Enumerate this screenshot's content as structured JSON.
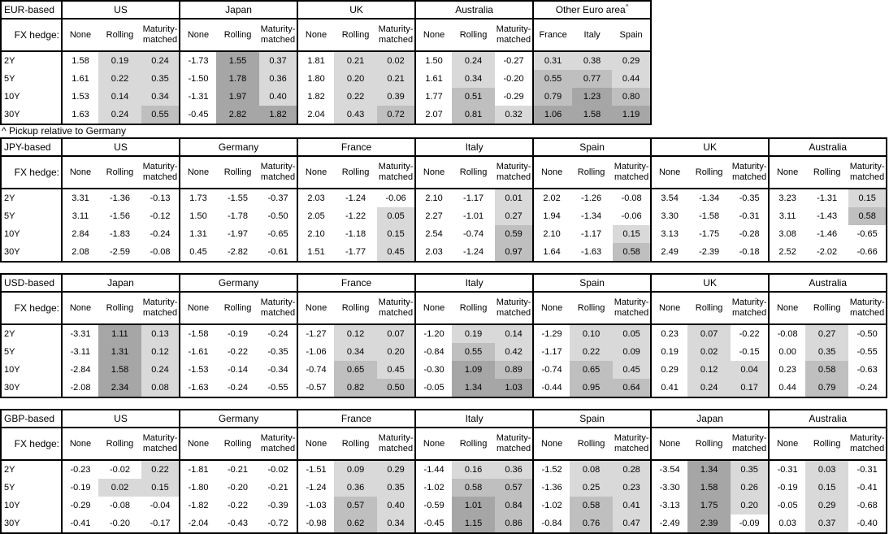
{
  "page": {
    "background": "#ffffff"
  },
  "fx_hedge_label": "FX hedge:",
  "row_labels": [
    "2Y",
    "5Y",
    "10Y",
    "30Y"
  ],
  "standard_cols": [
    "None",
    "Rolling",
    "Maturity-matched"
  ],
  "footnote": "^ Pickup relative to Germany",
  "shading": {
    "rule": "value cells (Rolling, Maturity-matched, and all Other-Euro-area columns) shaded by value: >0 light, >=0.5 medium, >=1.0 dark; None columns and non-positive values unshaded",
    "colors": {
      "light": "#d9d9d9",
      "medium": "#bfbfbf",
      "dark": "#a6a6a6",
      "none": "#ffffff"
    }
  },
  "tables": [
    {
      "base": "EUR-based",
      "groups": [
        {
          "name": "US",
          "values": [
            [
              1.58,
              0.19,
              0.24
            ],
            [
              1.61,
              0.22,
              0.35
            ],
            [
              1.53,
              0.14,
              0.34
            ],
            [
              1.63,
              0.24,
              0.55
            ]
          ]
        },
        {
          "name": "Japan",
          "values": [
            [
              -1.73,
              1.55,
              0.37
            ],
            [
              -1.5,
              1.78,
              0.36
            ],
            [
              -1.31,
              1.97,
              0.4
            ],
            [
              -0.45,
              2.82,
              1.82
            ]
          ]
        },
        {
          "name": "UK",
          "values": [
            [
              1.81,
              0.21,
              0.02
            ],
            [
              1.8,
              0.2,
              0.21
            ],
            [
              1.82,
              0.22,
              0.39
            ],
            [
              2.04,
              0.43,
              0.72
            ]
          ]
        },
        {
          "name": "Australia",
          "values": [
            [
              1.5,
              0.24,
              -0.27
            ],
            [
              1.61,
              0.34,
              -0.2
            ],
            [
              1.77,
              0.51,
              -0.29
            ],
            [
              2.07,
              0.81,
              0.32
            ]
          ]
        },
        {
          "name": "Other Euro area",
          "sup": "^",
          "shade_all": true,
          "cols": [
            "France",
            "Italy",
            "Spain"
          ],
          "values": [
            [
              0.31,
              0.38,
              0.29
            ],
            [
              0.55,
              0.77,
              0.44
            ],
            [
              0.79,
              1.23,
              0.8
            ],
            [
              1.06,
              1.58,
              1.19
            ]
          ]
        }
      ]
    },
    {
      "base": "JPY-based",
      "groups": [
        {
          "name": "US",
          "values": [
            [
              3.31,
              -1.36,
              -0.13
            ],
            [
              3.11,
              -1.56,
              -0.12
            ],
            [
              2.84,
              -1.83,
              -0.24
            ],
            [
              2.08,
              -2.59,
              -0.08
            ]
          ]
        },
        {
          "name": "Germany",
          "values": [
            [
              1.73,
              -1.55,
              -0.37
            ],
            [
              1.5,
              -1.78,
              -0.5
            ],
            [
              1.31,
              -1.97,
              -0.65
            ],
            [
              0.45,
              -2.82,
              -0.61
            ]
          ]
        },
        {
          "name": "France",
          "values": [
            [
              2.03,
              -1.24,
              -0.06
            ],
            [
              2.05,
              -1.22,
              0.05
            ],
            [
              2.1,
              -1.18,
              0.15
            ],
            [
              1.51,
              -1.77,
              0.45
            ]
          ]
        },
        {
          "name": "Italy",
          "values": [
            [
              2.1,
              -1.17,
              0.01
            ],
            [
              2.27,
              -1.01,
              0.27
            ],
            [
              2.54,
              -0.74,
              0.59
            ],
            [
              2.03,
              -1.24,
              0.97
            ]
          ]
        },
        {
          "name": "Spain",
          "values": [
            [
              2.02,
              -1.26,
              -0.08
            ],
            [
              1.94,
              -1.34,
              -0.06
            ],
            [
              2.1,
              -1.17,
              0.15
            ],
            [
              1.64,
              -1.63,
              0.58
            ]
          ]
        },
        {
          "name": "UK",
          "values": [
            [
              3.54,
              -1.34,
              -0.35
            ],
            [
              3.3,
              -1.58,
              -0.31
            ],
            [
              3.13,
              -1.75,
              -0.28
            ],
            [
              2.49,
              -2.39,
              -0.18
            ]
          ]
        },
        {
          "name": "Australia",
          "values": [
            [
              3.23,
              -1.31,
              0.15
            ],
            [
              3.11,
              -1.43,
              0.58
            ],
            [
              3.08,
              -1.46,
              -0.65
            ],
            [
              2.52,
              -2.02,
              -0.66
            ]
          ]
        }
      ]
    },
    {
      "base": "USD-based",
      "groups": [
        {
          "name": "Japan",
          "values": [
            [
              -3.31,
              1.11,
              0.13
            ],
            [
              -3.11,
              1.31,
              0.12
            ],
            [
              -2.84,
              1.58,
              0.24
            ],
            [
              -2.08,
              2.34,
              0.08
            ]
          ]
        },
        {
          "name": "Germany",
          "values": [
            [
              -1.58,
              -0.19,
              -0.24
            ],
            [
              -1.61,
              -0.22,
              -0.35
            ],
            [
              -1.53,
              -0.14,
              -0.34
            ],
            [
              -1.63,
              -0.24,
              -0.55
            ]
          ]
        },
        {
          "name": "France",
          "values": [
            [
              -1.27,
              0.12,
              0.07
            ],
            [
              -1.06,
              0.34,
              0.2
            ],
            [
              -0.74,
              0.65,
              0.45
            ],
            [
              -0.57,
              0.82,
              0.5
            ]
          ]
        },
        {
          "name": "Italy",
          "values": [
            [
              -1.2,
              0.19,
              0.14
            ],
            [
              -0.84,
              0.55,
              0.42
            ],
            [
              -0.3,
              1.09,
              0.89
            ],
            [
              -0.05,
              1.34,
              1.03
            ]
          ]
        },
        {
          "name": "Spain",
          "values": [
            [
              -1.29,
              0.1,
              0.05
            ],
            [
              -1.17,
              0.22,
              0.09
            ],
            [
              -0.74,
              0.65,
              0.45
            ],
            [
              -0.44,
              0.95,
              0.64
            ]
          ]
        },
        {
          "name": "UK",
          "values": [
            [
              0.23,
              0.07,
              -0.22
            ],
            [
              0.19,
              0.02,
              -0.15
            ],
            [
              0.29,
              0.12,
              0.04
            ],
            [
              0.41,
              0.24,
              0.17
            ]
          ]
        },
        {
          "name": "Australia",
          "values": [
            [
              -0.08,
              0.27,
              -0.5
            ],
            [
              0.0,
              0.35,
              -0.55
            ],
            [
              0.23,
              0.58,
              -0.63
            ],
            [
              0.44,
              0.79,
              -0.24
            ]
          ]
        }
      ]
    },
    {
      "base": "GBP-based",
      "groups": [
        {
          "name": "US",
          "values": [
            [
              -0.23,
              -0.02,
              0.22
            ],
            [
              -0.19,
              0.02,
              0.15
            ],
            [
              -0.29,
              -0.08,
              -0.04
            ],
            [
              -0.41,
              -0.2,
              -0.17
            ]
          ]
        },
        {
          "name": "Germany",
          "values": [
            [
              -1.81,
              -0.21,
              -0.02
            ],
            [
              -1.8,
              -0.2,
              -0.21
            ],
            [
              -1.82,
              -0.22,
              -0.39
            ],
            [
              -2.04,
              -0.43,
              -0.72
            ]
          ]
        },
        {
          "name": "France",
          "values": [
            [
              -1.51,
              0.09,
              0.29
            ],
            [
              -1.24,
              0.36,
              0.35
            ],
            [
              -1.03,
              0.57,
              0.4
            ],
            [
              -0.98,
              0.62,
              0.34
            ]
          ]
        },
        {
          "name": "Italy",
          "values": [
            [
              -1.44,
              0.16,
              0.36
            ],
            [
              -1.02,
              0.58,
              0.57
            ],
            [
              -0.59,
              1.01,
              0.84
            ],
            [
              -0.45,
              1.15,
              0.86
            ]
          ]
        },
        {
          "name": "Spain",
          "values": [
            [
              -1.52,
              0.08,
              0.28
            ],
            [
              -1.36,
              0.25,
              0.23
            ],
            [
              -1.02,
              0.58,
              0.41
            ],
            [
              -0.84,
              0.76,
              0.47
            ]
          ]
        },
        {
          "name": "Japan",
          "values": [
            [
              -3.54,
              1.34,
              0.35
            ],
            [
              -3.3,
              1.58,
              0.26
            ],
            [
              -3.13,
              1.75,
              0.2
            ],
            [
              -2.49,
              2.39,
              -0.09
            ]
          ]
        },
        {
          "name": "Australia",
          "values": [
            [
              -0.31,
              0.03,
              -0.31
            ],
            [
              -0.19,
              0.15,
              -0.41
            ],
            [
              -0.05,
              0.29,
              -0.68
            ],
            [
              0.03,
              0.37,
              -0.4
            ]
          ]
        }
      ]
    }
  ]
}
